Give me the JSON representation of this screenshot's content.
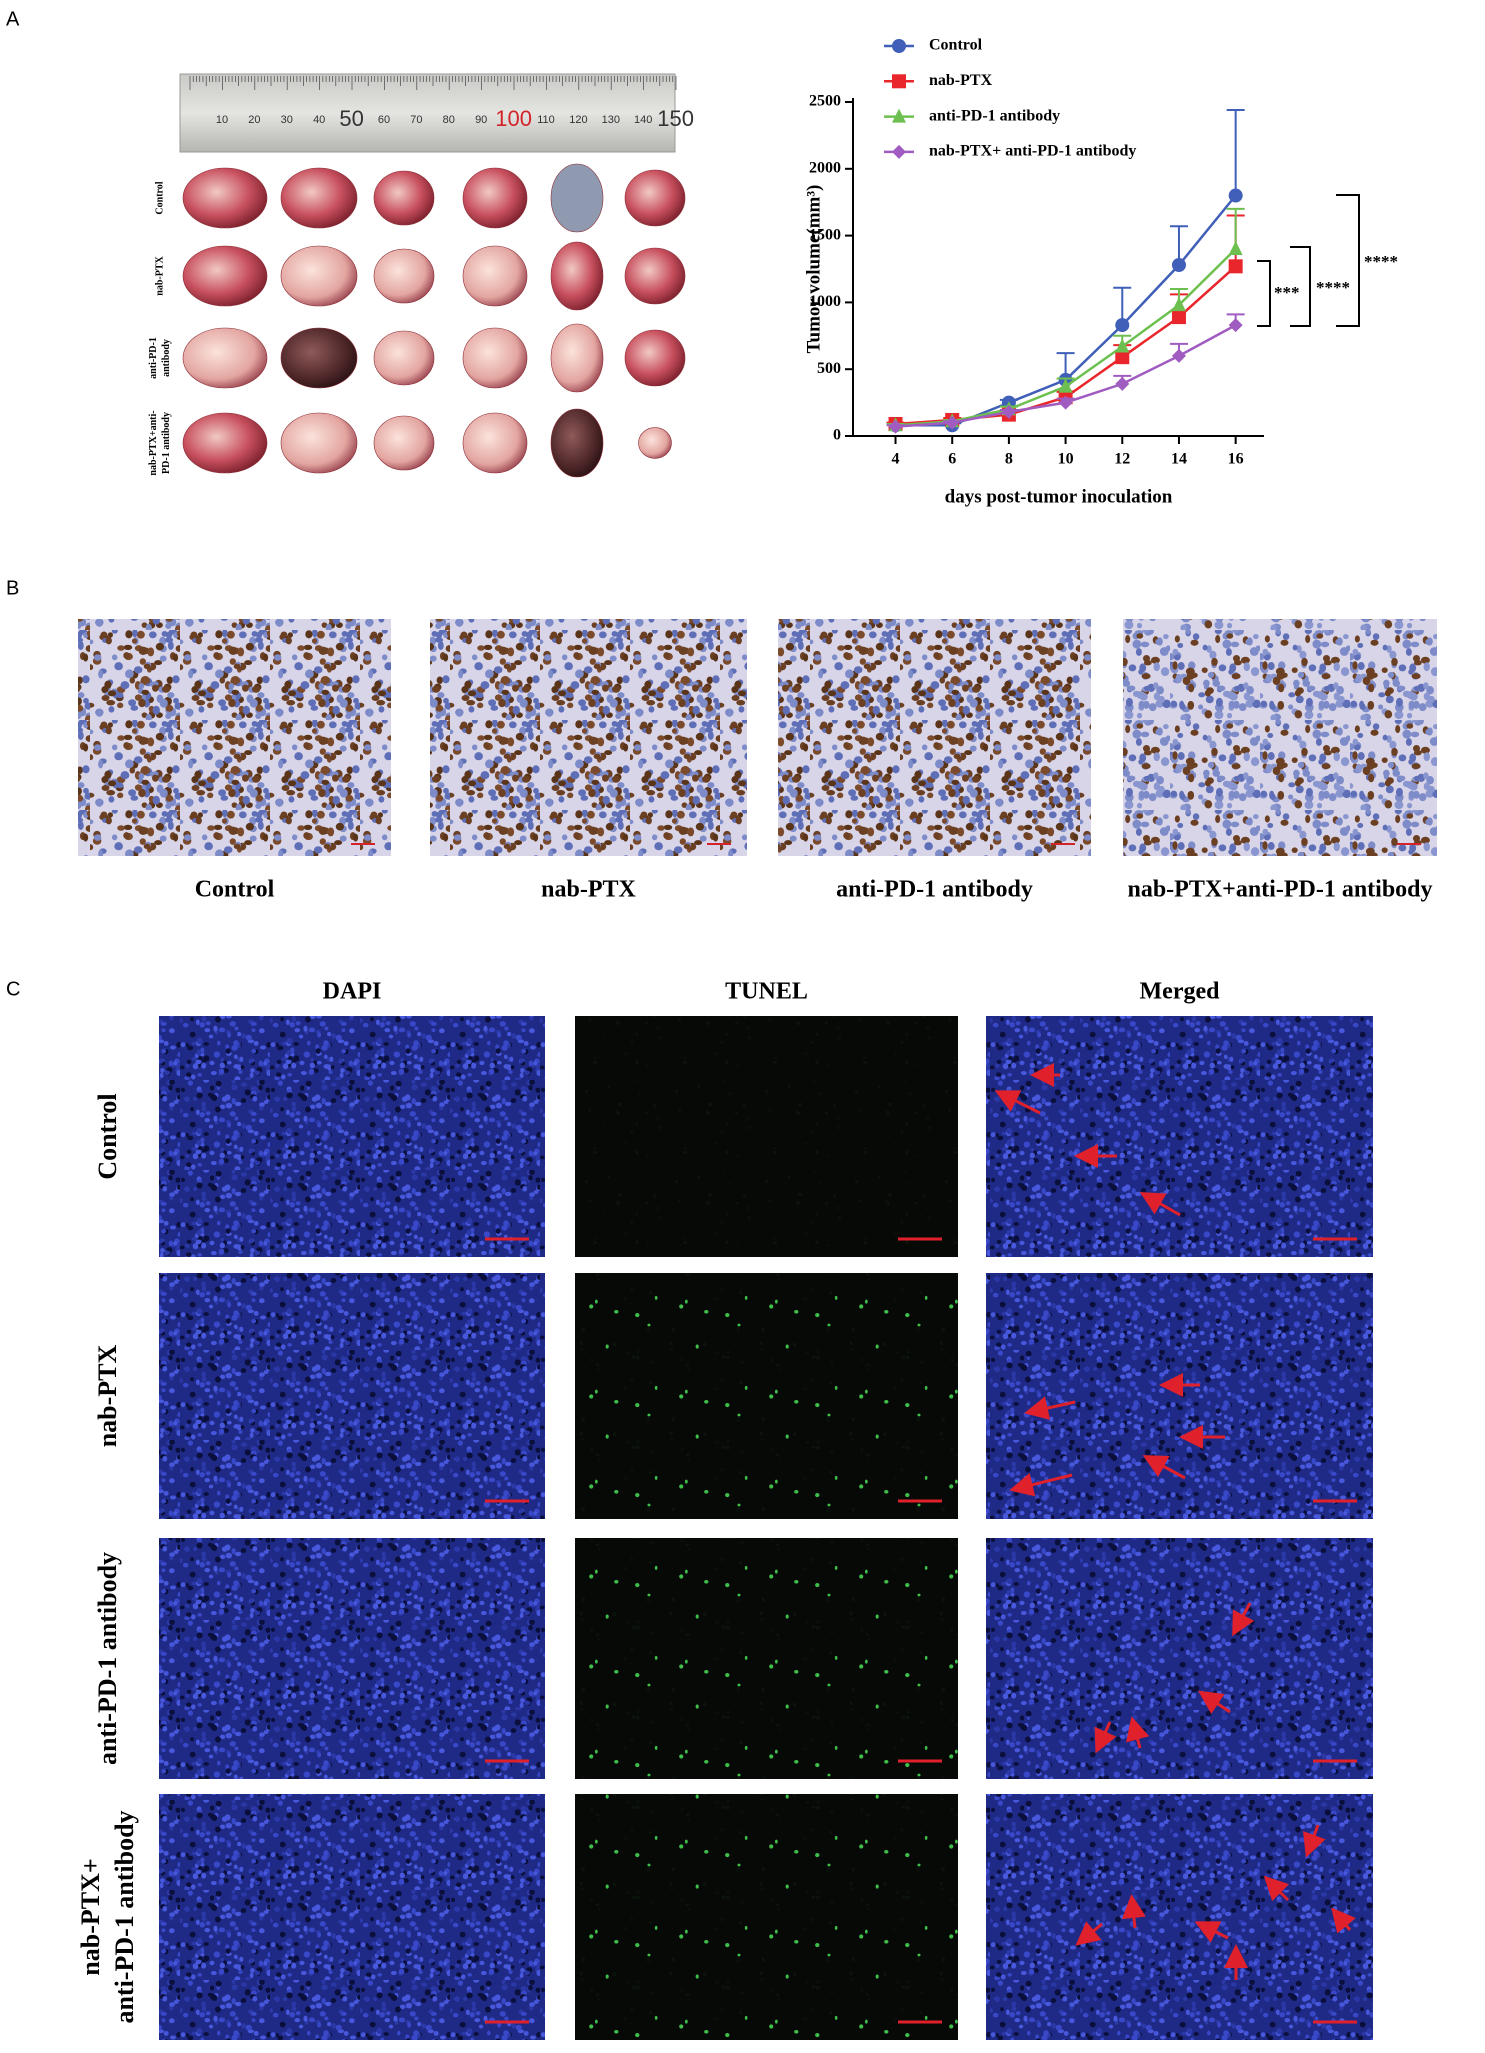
{
  "panel_labels": [
    "A",
    "B",
    "C"
  ],
  "panel_a": {
    "ruler_labels": [
      10,
      20,
      30,
      40,
      50,
      60,
      70,
      80,
      90,
      100,
      110,
      120,
      130,
      140,
      150
    ],
    "row_labels": [
      [
        "Control"
      ],
      [
        "nab-PTX"
      ],
      [
        "anti-PD-1",
        "antibody"
      ],
      [
        "nab-PTX+anti-",
        "PD-1 antibody"
      ]
    ]
  },
  "chart_data": {
    "type": "line",
    "x_label": "days post-tumor inoculation",
    "y_label": "Tumor volume(mm³)",
    "x": [
      4,
      6,
      8,
      10,
      12,
      14,
      16
    ],
    "xlim": [
      2.5,
      17
    ],
    "xticks": [
      4,
      6,
      8,
      10,
      12,
      14,
      16
    ],
    "ylim": [
      0,
      2500
    ],
    "yticks": [
      0,
      500,
      1000,
      1500,
      2000,
      2500
    ],
    "legend": "top-left",
    "series": [
      {
        "name": "Control",
        "color": "#3f5fb8",
        "marker": "circle",
        "values": [
          80,
          80,
          250,
          420,
          830,
          1280,
          1800
        ],
        "errors": [
          10,
          15,
          20,
          200,
          280,
          290,
          640
        ]
      },
      {
        "name": "nab-PTX",
        "color": "#e8262b",
        "marker": "square",
        "values": [
          90,
          120,
          160,
          290,
          590,
          890,
          1270
        ],
        "errors": [
          10,
          15,
          20,
          40,
          90,
          170,
          380
        ]
      },
      {
        "name": "anti-PD-1 antibody",
        "color": "#6dc04f",
        "marker": "triangle",
        "values": [
          80,
          110,
          200,
          370,
          670,
          980,
          1400
        ],
        "errors": [
          10,
          10,
          20,
          60,
          80,
          120,
          300
        ]
      },
      {
        "name": "nab-PTX+ anti-PD-1 antibody",
        "color": "#a05cc0",
        "marker": "diamond",
        "values": [
          70,
          100,
          180,
          250,
          390,
          600,
          830
        ],
        "errors": [
          10,
          10,
          15,
          30,
          60,
          90,
          80
        ]
      }
    ],
    "significance": [
      "***",
      "****",
      "****"
    ]
  },
  "panel_b": {
    "labels": [
      "Control",
      "nab-PTX",
      "anti-PD-1 antibody",
      "nab-PTX+anti-PD-1 antibody"
    ]
  },
  "panel_c": {
    "columns": [
      "DAPI",
      "TUNEL",
      "Merged"
    ],
    "rows": [
      [
        "Control"
      ],
      [
        "nab-PTX"
      ],
      [
        "anti-PD-1 antibody"
      ],
      [
        "nab-PTX+",
        "anti-PD-1 antibody"
      ]
    ]
  }
}
